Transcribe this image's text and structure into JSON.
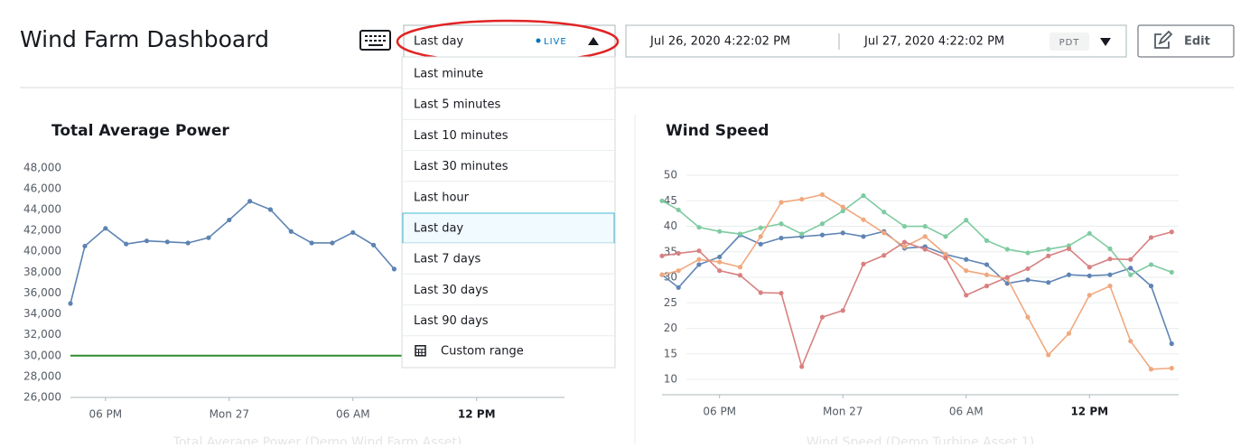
{
  "header": {
    "title": "Wind Farm Dashboard",
    "time_picker": {
      "selected": "Last day",
      "live": "LIVE"
    },
    "range": {
      "start": "Jul 26, 2020 4:22:02 PM",
      "end": "Jul 27, 2020 4:22:02 PM",
      "timezone": "PDT"
    },
    "edit": "Edit"
  },
  "menu": {
    "items": [
      "Last minute",
      "Last 5 minutes",
      "Last 10 minutes",
      "Last 30 minutes",
      "Last hour",
      "Last day",
      "Last 7 days",
      "Last 30 days",
      "Last 90 days"
    ],
    "custom": "Custom range"
  },
  "charts": [
    {
      "type": "line",
      "title": "Total Average Power",
      "caption": "Total Average Power (Demo Wind Farm Asset)",
      "grid": false,
      "xlim": [
        16.3,
        40.26
      ],
      "ylim": [
        26000,
        48500
      ],
      "xticks": [
        {
          "value": 18,
          "label": "06 PM"
        },
        {
          "value": 24,
          "label": "Mon 27"
        },
        {
          "value": 30,
          "label": "06 AM"
        },
        {
          "value": 36,
          "label": "12 PM",
          "bold": true
        }
      ],
      "yticks": [
        {
          "value": 26000,
          "label": "26,000"
        },
        {
          "value": 28000,
          "label": "28,000"
        },
        {
          "value": 30000,
          "label": "30,000"
        },
        {
          "value": 32000,
          "label": "32,000"
        },
        {
          "value": 34000,
          "label": "34,000"
        },
        {
          "value": 36000,
          "label": "36,000"
        },
        {
          "value": 38000,
          "label": "38,000"
        },
        {
          "value": 40000,
          "label": "40,000"
        },
        {
          "value": 42000,
          "label": "42,000"
        },
        {
          "value": 44000,
          "label": "44,000"
        },
        {
          "value": 46000,
          "label": "46,000"
        },
        {
          "value": 48000,
          "label": "48,000"
        }
      ],
      "threshold": {
        "value": 30000,
        "color": "#2e8b2e"
      },
      "x": [
        16.3,
        17,
        18,
        19,
        20,
        21,
        22,
        23,
        24,
        25,
        26,
        27,
        28,
        29,
        30,
        31,
        32
      ],
      "series": [
        {
          "color": "#5c83b2",
          "values": [
            35000,
            40500,
            42200,
            40700,
            41000,
            40900,
            40800,
            41300,
            43000,
            44800,
            44000,
            41900,
            40800,
            40800,
            41800,
            40600,
            38300
          ]
        }
      ]
    },
    {
      "type": "line",
      "title": "Wind Speed",
      "caption": "Wind Speed (Demo Turbine Asset 1)",
      "grid": true,
      "xlim": [
        15.2,
        40.34
      ],
      "ylim": [
        7,
        51.6
      ],
      "xticks": [
        {
          "value": 18,
          "label": "06 PM"
        },
        {
          "value": 24,
          "label": "Mon 27"
        },
        {
          "value": 30,
          "label": "06 AM"
        },
        {
          "value": 36,
          "label": "12 PM",
          "bold": true
        }
      ],
      "yticks": [
        10,
        15,
        20,
        25,
        30,
        35,
        40,
        45,
        50
      ],
      "x": [
        15.2,
        16,
        17,
        18,
        19,
        20,
        21,
        22,
        23,
        24,
        25,
        26,
        27,
        28,
        29,
        30,
        31,
        32,
        33,
        34,
        35,
        36,
        37,
        38,
        39,
        40
      ],
      "series": [
        {
          "color": "#5f84b4",
          "values": [
            30.5,
            28,
            32.5,
            34,
            38.3,
            36.5,
            37.7,
            38,
            38.3,
            38.7,
            38,
            39,
            35.7,
            36,
            34.5,
            33.5,
            32.5,
            28.8,
            29.5,
            29,
            30.5,
            30.3,
            30.5,
            31.8,
            28.3,
            17
          ]
        },
        {
          "color": "#7ecba1",
          "values": [
            45,
            43.2,
            39.8,
            39,
            38.5,
            39.7,
            40.5,
            38.5,
            40.5,
            43,
            46,
            42.8,
            40,
            40,
            38,
            41.2,
            37.2,
            35.5,
            34.8,
            35.5,
            36.2,
            38.6,
            35.6,
            30.5,
            32.5,
            31
          ]
        },
        {
          "color": "#f0a87e",
          "values": [
            30.5,
            31.3,
            33.5,
            33,
            32,
            38,
            44.7,
            45.3,
            46.2,
            43.8,
            41.3,
            38.7,
            36,
            38,
            34.5,
            31.3,
            30.5,
            29.8,
            22.2,
            14.8,
            19,
            26.5,
            28.3,
            17.5,
            12,
            12.2
          ]
        },
        {
          "color": "#d88080",
          "values": [
            34.2,
            34.7,
            35.2,
            31.3,
            30.4,
            27,
            26.9,
            12.5,
            22.2,
            23.5,
            32.6,
            34.3,
            36.9,
            35.5,
            33.8,
            26.5,
            28.3,
            30,
            31.7,
            34.2,
            35.6,
            32,
            33.6,
            33.5,
            37.8,
            38.9
          ]
        }
      ]
    }
  ]
}
